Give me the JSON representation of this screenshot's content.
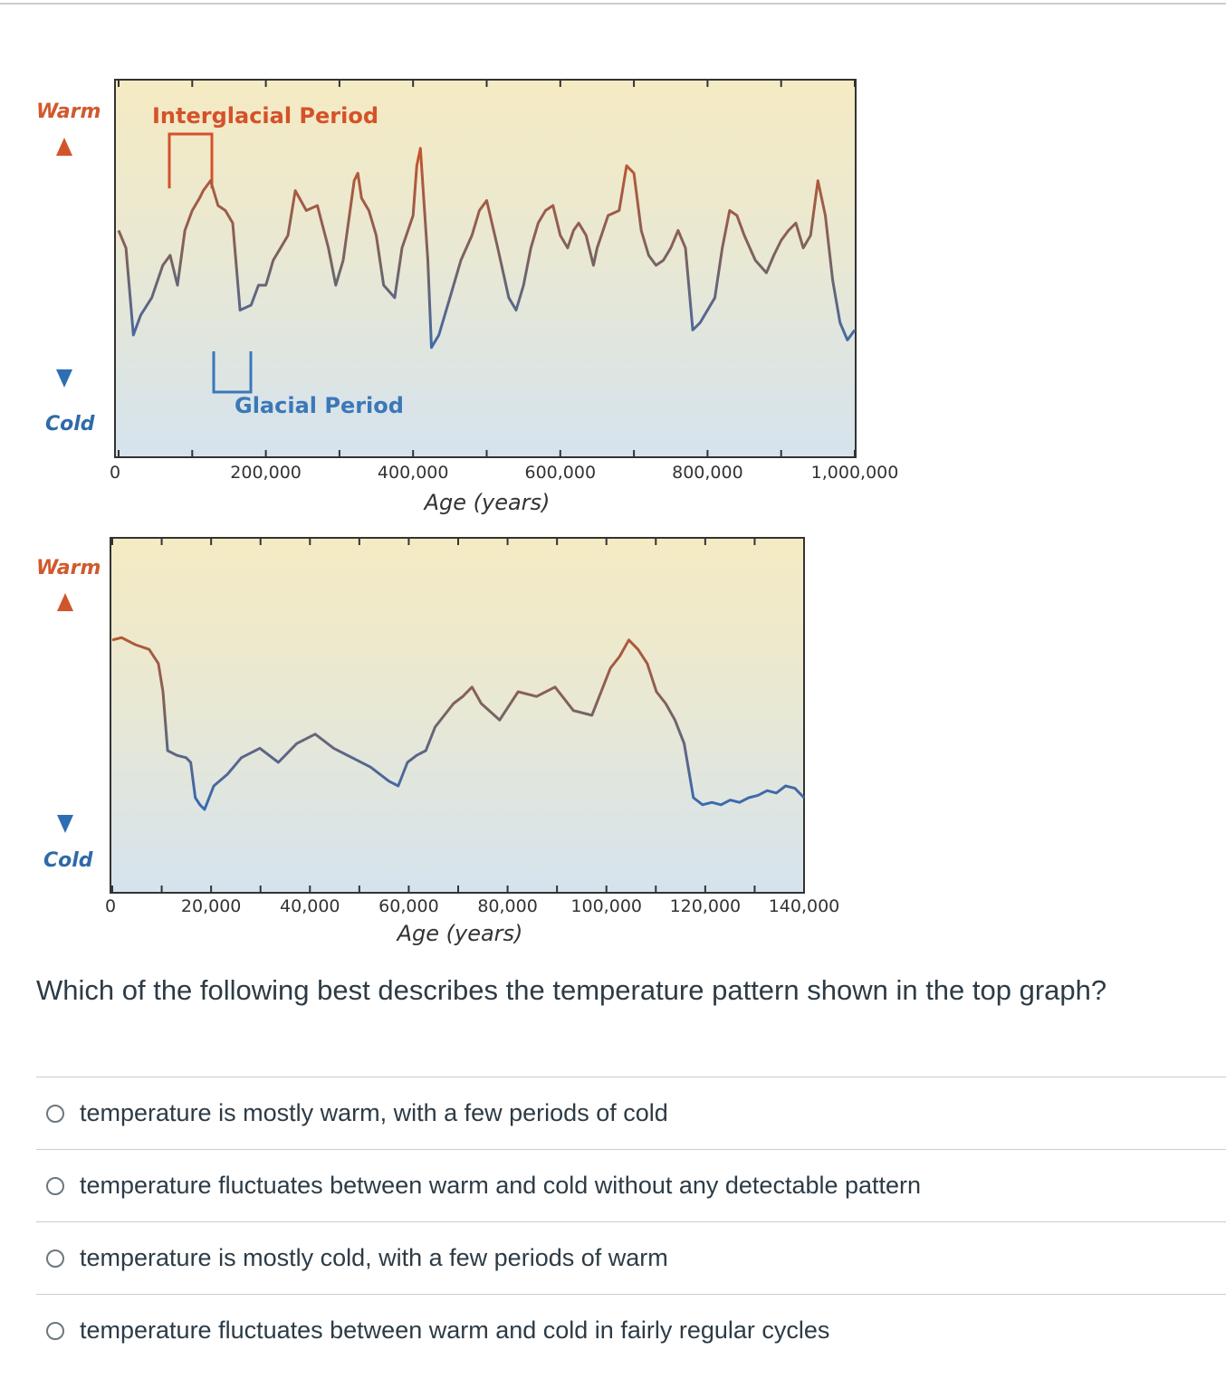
{
  "chart_data": [
    {
      "type": "line",
      "title": "",
      "xlabel": "Age (years)",
      "ylabel": "",
      "xlim": [
        0,
        1000000
      ],
      "x_ticks": [
        "0",
        "200,000",
        "400,000",
        "600,000",
        "800,000",
        "1,000,000"
      ],
      "y_top_label": "Warm",
      "y_bottom_label": "Cold",
      "annotations": [
        "Interglacial Period",
        "Glacial Period"
      ],
      "ylim": [
        0,
        1
      ],
      "series": [
        {
          "x": [
            0,
            10000,
            20000,
            30000,
            45000,
            60000,
            70000,
            80000,
            90000,
            100000,
            110000,
            115000,
            125000,
            135000,
            145000,
            155000,
            165000,
            180000,
            190000,
            200000,
            205000,
            210000,
            220000,
            230000,
            240000,
            255000,
            270000,
            285000,
            295000,
            305000,
            320000,
            325000,
            330000,
            340000,
            350000,
            360000,
            375000,
            385000,
            400000,
            405000,
            410000,
            420000,
            425000,
            435000,
            450000,
            465000,
            480000,
            490000,
            500000,
            515000,
            530000,
            540000,
            550000,
            560000,
            570000,
            580000,
            590000,
            600000,
            610000,
            618000,
            625000,
            635000,
            645000,
            650000,
            665000,
            680000,
            690000,
            700000,
            710000,
            720000,
            730000,
            740000,
            750000,
            760000,
            770000,
            780000,
            790000,
            800000,
            810000,
            820000,
            830000,
            840000,
            850000,
            865000,
            880000,
            890000,
            900000,
            910000,
            920000,
            930000,
            940000,
            950000,
            960000,
            970000,
            980000,
            990000,
            1000000
          ],
          "values": [
            0.62,
            0.55,
            0.2,
            0.28,
            0.35,
            0.48,
            0.52,
            0.4,
            0.62,
            0.7,
            0.75,
            0.78,
            0.82,
            0.72,
            0.7,
            0.65,
            0.3,
            0.32,
            0.4,
            0.4,
            0.45,
            0.5,
            0.55,
            0.6,
            0.78,
            0.7,
            0.72,
            0.55,
            0.4,
            0.5,
            0.82,
            0.85,
            0.75,
            0.7,
            0.6,
            0.4,
            0.35,
            0.55,
            0.68,
            0.88,
            0.95,
            0.5,
            0.15,
            0.2,
            0.35,
            0.5,
            0.6,
            0.7,
            0.74,
            0.55,
            0.35,
            0.3,
            0.4,
            0.55,
            0.65,
            0.7,
            0.72,
            0.6,
            0.55,
            0.62,
            0.65,
            0.6,
            0.48,
            0.55,
            0.68,
            0.7,
            0.88,
            0.85,
            0.62,
            0.52,
            0.48,
            0.5,
            0.55,
            0.62,
            0.55,
            0.22,
            0.25,
            0.3,
            0.35,
            0.55,
            0.7,
            0.68,
            0.6,
            0.5,
            0.45,
            0.52,
            0.58,
            0.62,
            0.65,
            0.55,
            0.6,
            0.82,
            0.68,
            0.42,
            0.25,
            0.18,
            0.22
          ],
          "_note_removed": ""
        }
      ]
    },
    {
      "type": "line",
      "title": "",
      "xlabel": "Age (years)",
      "ylabel": "",
      "xlim": [
        0,
        150000
      ],
      "x_ticks": [
        "0",
        "20,000",
        "40,000",
        "60,000",
        "80,000",
        "100,000",
        "120,000",
        "140,000"
      ],
      "y_top_label": "Warm",
      "y_bottom_label": "Cold",
      "ylim": [
        0,
        1
      ],
      "series": [
        {
          "x": [
            0,
            2000,
            5000,
            8000,
            10000,
            11000,
            12000,
            14000,
            16000,
            17000,
            18000,
            19000,
            20000,
            22000,
            25000,
            28000,
            32000,
            36000,
            40000,
            44000,
            48000,
            52000,
            56000,
            60000,
            62000,
            64000,
            66000,
            68000,
            70000,
            72000,
            74000,
            76000,
            78000,
            80000,
            84000,
            88000,
            92000,
            96000,
            100000,
            104000,
            108000,
            110000,
            112000,
            114000,
            116000,
            118000,
            120000,
            122000,
            124000,
            126000,
            128000,
            130000,
            132000,
            134000,
            136000,
            138000,
            140000,
            142000,
            144000,
            146000,
            148000,
            150000
          ],
          "values": [
            0.82,
            0.83,
            0.8,
            0.78,
            0.72,
            0.6,
            0.35,
            0.33,
            0.32,
            0.3,
            0.15,
            0.12,
            0.1,
            0.2,
            0.25,
            0.32,
            0.36,
            0.3,
            0.38,
            0.42,
            0.36,
            0.32,
            0.28,
            0.22,
            0.2,
            0.3,
            0.33,
            0.35,
            0.45,
            0.5,
            0.55,
            0.58,
            0.62,
            0.55,
            0.48,
            0.6,
            0.58,
            0.62,
            0.52,
            0.5,
            0.7,
            0.75,
            0.82,
            0.78,
            0.72,
            0.6,
            0.55,
            0.48,
            0.38,
            0.15,
            0.12,
            0.13,
            0.12,
            0.14,
            0.13,
            0.15,
            0.16,
            0.18,
            0.17,
            0.2,
            0.19,
            0.15
          ]
        }
      ]
    }
  ],
  "question": "Which of the following best describes the temperature pattern shown in the top graph?",
  "answers": [
    "temperature is mostly warm, with a few periods of cold",
    "temperature fluctuates between warm and cold without any detectable pattern",
    "temperature is mostly cold, with a few periods of warm",
    "temperature fluctuates between warm and cold in fairly regular cycles"
  ],
  "colors": {
    "warm": "#c8502a",
    "cold": "#2f6db5",
    "mid": "#7a6a6a",
    "axis_label_warm": "#d05a2e",
    "axis_label_cold": "#2f6aa8",
    "annotation_warm": "#d4522a",
    "annotation_cold": "#3b78b8"
  }
}
